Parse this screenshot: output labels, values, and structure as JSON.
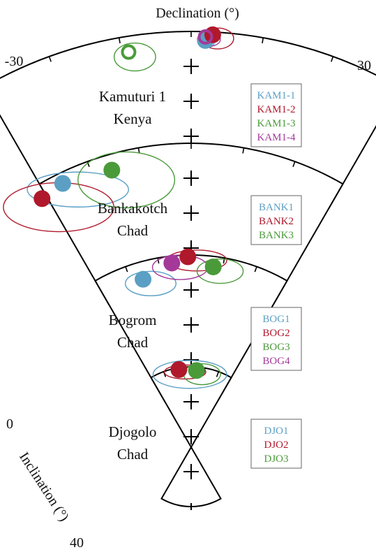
{
  "chart_data": {
    "type": "scatter",
    "projection": "equal-angle sector (declination vs inclination)",
    "top_axis_label": "Declination (°)",
    "top_axis_ticks": [
      "-30",
      "30"
    ],
    "left_axis_label": "Inclination (°)",
    "left_axis_ticks": [
      "0",
      "40"
    ],
    "declination_range": [
      -30,
      30
    ],
    "inclination_range": [
      0,
      40
    ],
    "grid": true,
    "panels": [
      {
        "id": "kam",
        "site": "Kamuturi 1",
        "region": "Kenya",
        "legend_position": "right",
        "series": [
          {
            "name": "KAM1-1",
            "color": "#5b9fc4",
            "filled": true,
            "dec": 2,
            "inc": 2.5,
            "a95_dec": 3,
            "a95_inc": 1.5
          },
          {
            "name": "KAM1-2",
            "color": "#b0182b",
            "filled": true,
            "dec": 3,
            "inc": 0.8,
            "a95_dec": 7,
            "a95_inc": 3
          },
          {
            "name": "KAM1-3",
            "color": "#4a9a3a",
            "filled": false,
            "dec": -9,
            "inc": 4.5,
            "a95_dec": 9,
            "a95_inc": 4
          },
          {
            "name": "KAM1-4",
            "color": "#a4399a",
            "filled": false,
            "dec": 2,
            "inc": 1.5,
            "a95_dec": 5,
            "a95_inc": 2
          }
        ]
      },
      {
        "id": "bank",
        "site": "Bankakotch",
        "region": "Chad",
        "legend_position": "right",
        "series": [
          {
            "name": "BANK1",
            "color": "#5b9fc4",
            "filled": true,
            "dec": -26,
            "inc": 3,
            "a95_dec": 22,
            "a95_inc": 5
          },
          {
            "name": "BANK2",
            "color": "#b0182b",
            "filled": true,
            "dec": -31,
            "inc": 4,
            "a95_dec": 24,
            "a95_inc": 7
          },
          {
            "name": "BANK3",
            "color": "#4a9a3a",
            "filled": true,
            "dec": -16,
            "inc": 4.5,
            "a95_dec": 21,
            "a95_inc": 8
          }
        ]
      },
      {
        "id": "bog",
        "site": "Bogrom",
        "region": "Chad",
        "legend_position": "right",
        "series": [
          {
            "name": "BOG1",
            "color": "#5b9fc4",
            "filled": true,
            "dec": -16,
            "inc": 5,
            "a95_dec": 11,
            "a95_inc": 3.5
          },
          {
            "name": "BOG2",
            "color": "#b0182b",
            "filled": true,
            "dec": -1,
            "inc": 0.5,
            "a95_dec": 13,
            "a95_inc": 3
          },
          {
            "name": "BOG3",
            "color": "#4a9a3a",
            "filled": true,
            "dec": 7,
            "inc": 3,
            "a95_dec": 10,
            "a95_inc": 3.5
          },
          {
            "name": "BOG4",
            "color": "#a4399a",
            "filled": true,
            "dec": -6,
            "inc": 2,
            "a95_dec": 12,
            "a95_inc": 3.5
          }
        ]
      },
      {
        "id": "djo",
        "site": "Djogolo",
        "region": "Chad",
        "legend_position": "right",
        "series": [
          {
            "name": "DJO1",
            "color": "#5b9fc4",
            "filled": true,
            "dec": -9,
            "inc": 0.5,
            "a95_dec": 16,
            "a95_inc": 4
          },
          {
            "name": "DJO2",
            "color": "#b0182b",
            "filled": true,
            "dec": -9,
            "inc": 0.5,
            "a95_dec": 9,
            "a95_inc": 2
          },
          {
            "name": "DJO3",
            "color": "#4a9a3a",
            "filled": true,
            "dec": 4,
            "inc": 1,
            "a95_dec": 8,
            "a95_inc": 3
          }
        ]
      }
    ]
  }
}
